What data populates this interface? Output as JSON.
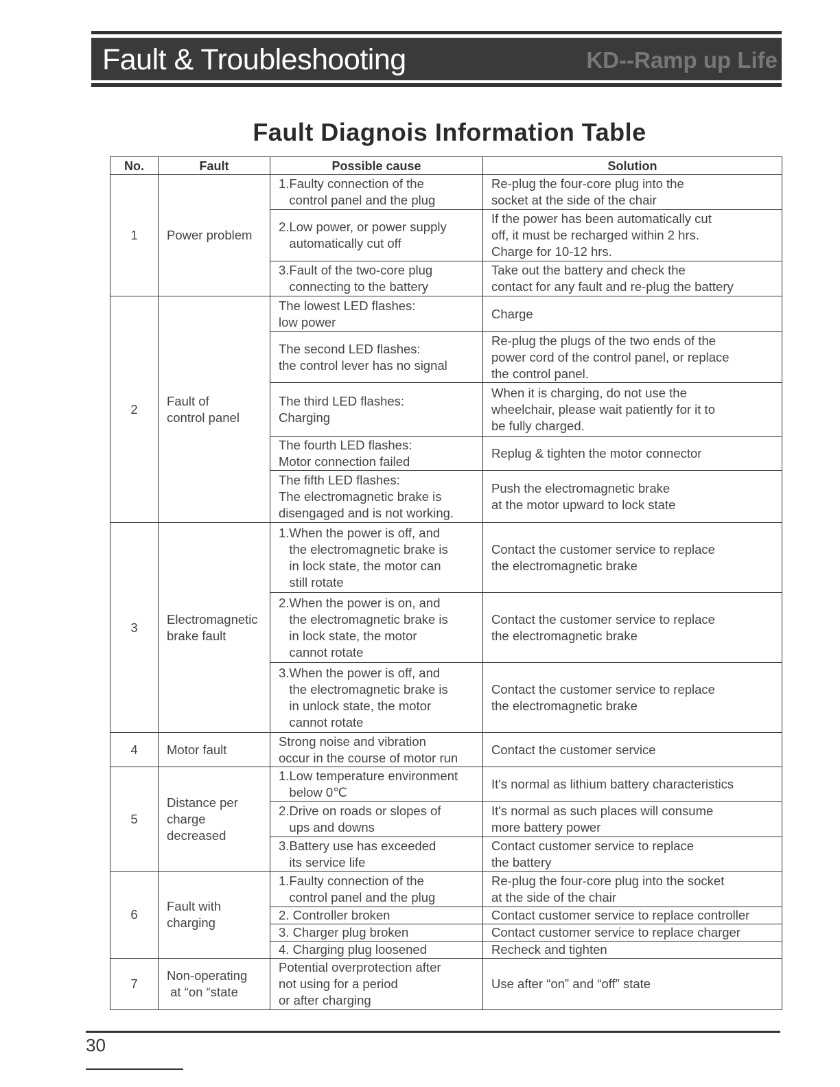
{
  "header": {
    "title": "Fault & Troubleshooting",
    "brand": "KD--Ramp up Life"
  },
  "heading": "Fault Diagnois Information Table",
  "columns": [
    "No.",
    "Fault",
    "Possible cause",
    "Solution"
  ],
  "groups": [
    {
      "no": "1",
      "fault": "Power problem",
      "rows": [
        {
          "cause": "1.Faulty connection of the\n   control panel and the plug",
          "solution": "Re-plug the four-core plug into the\nsocket at the side of the chair",
          "h": 51
        },
        {
          "cause": "2.Low power, or power supply\n   automatically cut off",
          "solution": "If the power has been automatically cut\noff, it must be recharged within 2 hrs.\nCharge for 10-12 hrs.",
          "h": 75
        },
        {
          "cause": "3.Fault of the two-core plug\n   connecting to the battery",
          "solution": "Take out the battery and check the\ncontact for any fault and re-plug the battery",
          "h": 51
        }
      ]
    },
    {
      "no": "2",
      "fault": "Fault of\ncontrol panel",
      "rows": [
        {
          "cause": "The lowest LED flashes:\nlow power",
          "solution": "Charge",
          "h": 52
        },
        {
          "cause": "The second LED flashes:\nthe control lever has no signal",
          "solution": "Re-plug the plugs of the two ends of the\npower cord of the control panel, or replace\nthe control panel.",
          "h": 74
        },
        {
          "cause": "The third LED flashes:\nCharging",
          "solution": "When it is charging, do not use the\nwheelchair, please wait patiently for it to\nbe fully charged.",
          "h": 79
        },
        {
          "cause": "The fourth LED flashes:\nMotor connection failed",
          "solution": "Replug & tighten the motor connector",
          "h": 49
        },
        {
          "cause": "The fifth LED flashes:\nThe electromagnetic brake is\ndisengaged and is not working.",
          "solution": "Push the electromagnetic brake\nat the motor upward to lock state",
          "h": 76
        }
      ]
    },
    {
      "no": "3",
      "fault": "Electromagnetic\nbrake fault",
      "rows": [
        {
          "cause": "1.When the power is off, and\n   the electromagnetic brake is\n   in lock state, the motor can\n   still rotate",
          "solution": "Contact the customer service to replace\nthe electromagnetic brake",
          "h": 102
        },
        {
          "cause": "2.When the power is on, and\n   the electromagnetic brake is\n   in lock state, the motor\n   cannot rotate",
          "solution": "Contact the customer service to replace\nthe electromagnetic brake",
          "h": 102
        },
        {
          "cause": "3.When the power is off, and\n   the electromagnetic brake is\n   in unlock state, the motor\n   cannot rotate",
          "solution": "Contact the customer service to replace\nthe electromagnetic brake",
          "h": 102
        }
      ]
    },
    {
      "no": "4",
      "fault": "Motor fault",
      "rows": [
        {
          "cause": "Strong noise and vibration\noccur in the course of motor run",
          "solution": "Contact the customer service",
          "h": 50
        }
      ]
    },
    {
      "no": "5",
      "fault": "Distance per\ncharge\ndecreased",
      "rows": [
        {
          "cause": "1.Low temperature environment\n   below 0℃",
          "solution": "It's normal as lithium battery characteristics",
          "h": 50
        },
        {
          "cause": "2.Drive on roads or slopes of\n   ups and downs",
          "solution": "It's normal as such places will consume\nmore battery power",
          "h": 52
        },
        {
          "cause": "3.Battery use has exceeded\n   its service life",
          "solution": "Contact customer service to replace\nthe battery",
          "h": 50
        }
      ]
    },
    {
      "no": "6",
      "fault": "Fault with\ncharging",
      "rows": [
        {
          "cause": "1.Faulty connection of the\n   control panel and the plug",
          "solution": "Re-plug the four-core plug into the socket\nat the side of the chair",
          "h": 52
        },
        {
          "cause": "2. Controller broken",
          "solution": "Contact customer service to replace controller",
          "h": 25
        },
        {
          "cause": "3. Charger plug broken",
          "solution": "Contact customer service to replace charger",
          "h": 25
        },
        {
          "cause": "4. Charging plug loosened",
          "solution": "Recheck and tighten",
          "h": 25
        }
      ]
    },
    {
      "no": "7",
      "fault": "Non-operating\n at “on “state",
      "rows": [
        {
          "cause": "Potential overprotection after\nnot using for a period\nor after charging",
          "solution": "Use after “on” and “off” state",
          "h": 75
        }
      ]
    }
  ],
  "footer": {
    "page": "30"
  }
}
